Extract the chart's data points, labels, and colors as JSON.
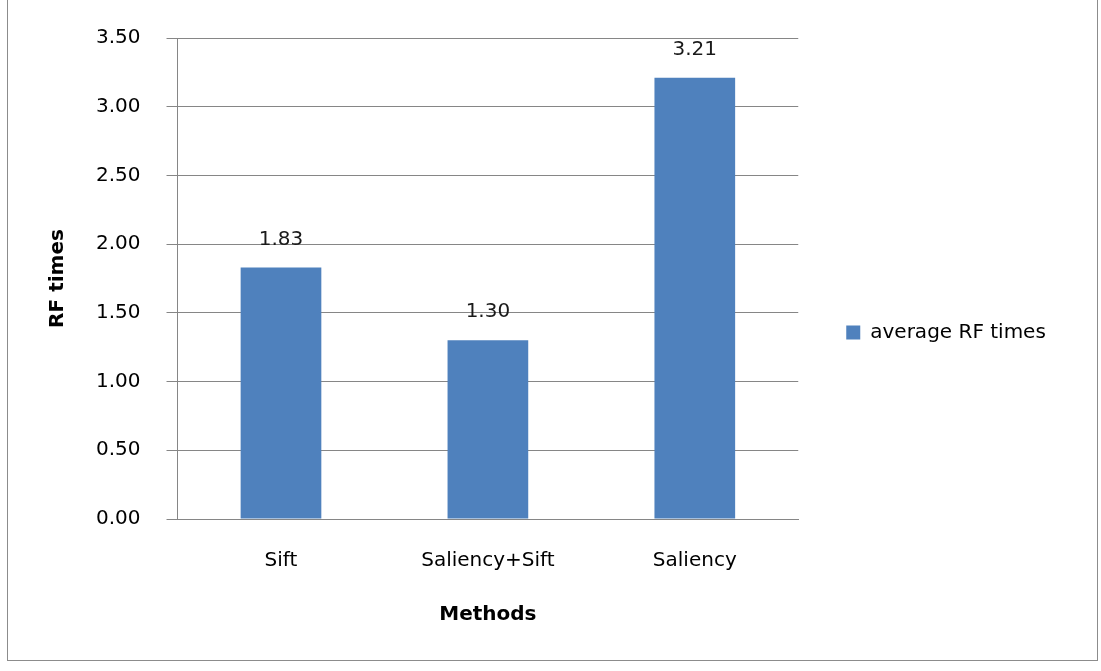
{
  "chart_data": {
    "type": "bar",
    "xlabel": "Methods",
    "ylabel": "RF times",
    "categories": [
      "Sift",
      "Saliency+Sift",
      "Saliency"
    ],
    "series": [
      {
        "name": "average RF times",
        "color": "#4f81bd",
        "values": [
          1.83,
          1.3,
          3.21
        ],
        "value_labels": [
          "1.83",
          "1.30",
          "3.21"
        ]
      }
    ],
    "ylim": [
      0,
      3.5
    ],
    "yticks": [
      {
        "value": 0,
        "label": "0.00"
      },
      {
        "value": 0.5,
        "label": "0.50"
      },
      {
        "value": 1,
        "label": "1.00"
      },
      {
        "value": 1.5,
        "label": "1.50"
      },
      {
        "value": 2,
        "label": "2.00"
      },
      {
        "value": 2.5,
        "label": "2.50"
      },
      {
        "value": 3,
        "label": "3.00"
      },
      {
        "value": 3.5,
        "label": "3.50"
      }
    ],
    "grid": "y",
    "legend": "right"
  }
}
